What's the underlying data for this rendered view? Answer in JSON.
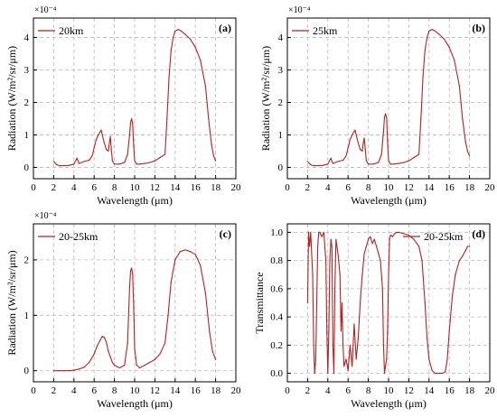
{
  "colors": {
    "series": "#b22222",
    "grid": "#b9b9b9",
    "axis": "#000000"
  },
  "chart_data": [
    {
      "type": "line",
      "panel_label": "(a)",
      "xlabel": "Wavelength (μm)",
      "ylabel": "Radiation (W/m²/sr/μm)",
      "scale_label": "×10⁻⁴",
      "xlim": [
        0,
        20
      ],
      "ylim": [
        -0.35,
        4.6
      ],
      "xticks": [
        0,
        2,
        4,
        6,
        8,
        10,
        12,
        14,
        16,
        18,
        20
      ],
      "yticks": [
        0,
        1,
        2,
        3,
        4
      ],
      "grid": true,
      "legend_position": "top-left",
      "series": [
        {
          "name": "20km",
          "x": [
            2.0,
            2.3,
            2.6,
            3.0,
            3.5,
            4.0,
            4.3,
            4.5,
            5.0,
            5.5,
            5.8,
            6.0,
            6.2,
            6.4,
            6.6,
            6.7,
            6.8,
            7.0,
            7.2,
            7.4,
            7.5,
            7.6,
            7.7,
            7.8,
            8.0,
            8.5,
            9.0,
            9.3,
            9.5,
            9.6,
            9.7,
            9.8,
            9.9,
            10.0,
            10.2,
            10.5,
            11.0,
            11.5,
            12.0,
            12.5,
            13.0,
            13.2,
            13.4,
            13.6,
            13.8,
            14.0,
            14.3,
            14.6,
            15.0,
            15.5,
            16.0,
            16.5,
            17.0,
            17.3,
            17.6,
            17.8,
            18.0
          ],
          "values": [
            0.18,
            0.08,
            0.05,
            0.05,
            0.06,
            0.1,
            0.28,
            0.12,
            0.18,
            0.22,
            0.35,
            0.6,
            0.85,
            1.0,
            1.1,
            1.15,
            1.0,
            0.75,
            0.55,
            0.5,
            0.75,
            0.95,
            0.55,
            0.2,
            0.1,
            0.1,
            0.15,
            0.4,
            1.0,
            1.4,
            1.5,
            1.35,
            0.7,
            0.2,
            0.1,
            0.1,
            0.12,
            0.15,
            0.2,
            0.3,
            0.4,
            1.5,
            2.8,
            3.6,
            4.0,
            4.2,
            4.25,
            4.2,
            4.1,
            3.95,
            3.7,
            3.3,
            2.5,
            1.5,
            0.7,
            0.35,
            0.2
          ]
        }
      ]
    },
    {
      "type": "line",
      "panel_label": "(b)",
      "xlabel": "Wavelength (μm)",
      "ylabel": "Radiation (W/m²/sr/μm)",
      "scale_label": "×10⁻⁴",
      "xlim": [
        0,
        20
      ],
      "ylim": [
        -0.35,
        4.6
      ],
      "xticks": [
        0,
        2,
        4,
        6,
        8,
        10,
        12,
        14,
        16,
        18,
        20
      ],
      "yticks": [
        0,
        1,
        2,
        3,
        4
      ],
      "grid": true,
      "legend_position": "top-left",
      "series": [
        {
          "name": "25km",
          "x": [
            2.0,
            2.3,
            2.6,
            3.0,
            3.5,
            4.0,
            4.3,
            4.5,
            5.0,
            5.5,
            5.8,
            6.0,
            6.2,
            6.4,
            6.6,
            6.7,
            6.8,
            7.0,
            7.2,
            7.4,
            7.5,
            7.6,
            7.7,
            7.8,
            8.0,
            8.5,
            9.0,
            9.3,
            9.5,
            9.6,
            9.7,
            9.8,
            9.9,
            10.0,
            10.2,
            10.5,
            11.0,
            11.5,
            12.0,
            12.5,
            13.0,
            13.2,
            13.4,
            13.6,
            13.8,
            14.0,
            14.3,
            14.6,
            15.0,
            15.5,
            16.0,
            16.5,
            17.0,
            17.3,
            17.6,
            17.8,
            18.0
          ],
          "values": [
            0.18,
            0.08,
            0.05,
            0.05,
            0.06,
            0.1,
            0.28,
            0.12,
            0.18,
            0.22,
            0.35,
            0.6,
            0.85,
            1.0,
            1.1,
            1.15,
            1.0,
            0.75,
            0.55,
            0.5,
            0.75,
            0.9,
            0.55,
            0.2,
            0.1,
            0.1,
            0.15,
            0.4,
            1.1,
            1.55,
            1.65,
            1.55,
            0.8,
            0.2,
            0.1,
            0.1,
            0.12,
            0.15,
            0.2,
            0.3,
            0.4,
            1.5,
            2.8,
            3.6,
            4.0,
            4.2,
            4.25,
            4.2,
            4.1,
            3.95,
            3.7,
            3.3,
            2.5,
            1.5,
            0.8,
            0.5,
            0.35
          ]
        }
      ]
    },
    {
      "type": "line",
      "panel_label": "(c)",
      "xlabel": "Wavelength (μm)",
      "ylabel": "Radiation (W/m²/sr/μm)",
      "scale_label": "×10⁻⁴",
      "xlim": [
        0,
        20
      ],
      "ylim": [
        -0.2,
        2.65
      ],
      "xticks": [
        0,
        2,
        4,
        6,
        8,
        10,
        12,
        14,
        16,
        18,
        20
      ],
      "yticks": [
        0,
        1,
        2
      ],
      "grid": true,
      "legend_position": "top-left",
      "series": [
        {
          "name": "20-25km",
          "x": [
            2.0,
            2.5,
            3.0,
            3.5,
            4.0,
            4.5,
            5.0,
            5.5,
            6.0,
            6.3,
            6.6,
            6.8,
            7.0,
            7.2,
            7.4,
            7.6,
            7.8,
            8.0,
            8.5,
            9.0,
            9.3,
            9.5,
            9.6,
            9.7,
            9.8,
            9.9,
            10.0,
            10.2,
            10.5,
            11.0,
            11.5,
            12.0,
            12.5,
            13.0,
            13.3,
            13.6,
            14.0,
            14.5,
            15.0,
            15.5,
            16.0,
            16.5,
            17.0,
            17.4,
            17.7,
            18.0
          ],
          "values": [
            0.0,
            0.0,
            0.0,
            0.0,
            0.01,
            0.03,
            0.06,
            0.15,
            0.3,
            0.45,
            0.55,
            0.62,
            0.6,
            0.52,
            0.35,
            0.25,
            0.15,
            0.1,
            0.05,
            0.1,
            0.5,
            1.5,
            1.8,
            1.85,
            1.75,
            1.2,
            0.4,
            0.1,
            0.05,
            0.1,
            0.15,
            0.2,
            0.3,
            0.5,
            1.0,
            1.6,
            2.0,
            2.15,
            2.18,
            2.15,
            2.1,
            1.9,
            1.4,
            0.7,
            0.35,
            0.2
          ]
        }
      ]
    },
    {
      "type": "line",
      "panel_label": "(d)",
      "xlabel": "Wavelength (μm)",
      "ylabel": "Transmittance",
      "scale_label": "",
      "xlim": [
        0,
        20
      ],
      "ylim": [
        -0.06,
        1.06
      ],
      "xticks": [
        0,
        2,
        4,
        6,
        8,
        10,
        12,
        14,
        16,
        18,
        20
      ],
      "yticks": [
        0.0,
        0.2,
        0.4,
        0.6,
        0.8,
        1.0
      ],
      "yticklabels": [
        "0.0",
        "0.2",
        "0.4",
        "0.6",
        "0.8",
        "1.0"
      ],
      "grid": true,
      "legend_position": "top-right",
      "series": [
        {
          "name": "20-25km",
          "x": [
            2.0,
            2.1,
            2.2,
            2.3,
            2.5,
            2.6,
            2.7,
            2.8,
            2.9,
            3.0,
            3.1,
            3.2,
            3.4,
            3.6,
            3.8,
            3.9,
            4.0,
            4.1,
            4.2,
            4.3,
            4.4,
            4.5,
            4.6,
            4.7,
            4.8,
            5.0,
            5.2,
            5.3,
            5.4,
            5.5,
            5.6,
            5.8,
            6.0,
            6.2,
            6.4,
            6.6,
            6.8,
            7.0,
            7.2,
            7.4,
            7.6,
            7.8,
            8.0,
            8.2,
            8.4,
            8.6,
            8.8,
            9.0,
            9.2,
            9.4,
            9.5,
            9.6,
            9.7,
            9.8,
            9.9,
            10.0,
            10.1,
            10.2,
            10.4,
            10.6,
            10.8,
            11.0,
            11.5,
            12.0,
            12.5,
            13.0,
            13.3,
            13.6,
            13.8,
            14.0,
            14.3,
            14.6,
            15.0,
            15.3,
            15.6,
            15.8,
            16.0,
            16.3,
            16.6,
            17.0,
            17.3,
            17.6,
            17.8,
            18.0
          ],
          "values": [
            0.5,
            1.0,
            0.9,
            1.0,
            0.7,
            0.2,
            0.0,
            0.1,
            0.5,
            0.9,
            1.0,
            1.0,
            0.97,
            1.0,
            0.8,
            0.3,
            0.0,
            0.3,
            0.8,
            0.95,
            0.9,
            0.2,
            0.0,
            0.6,
            0.95,
            0.85,
            0.7,
            0.3,
            0.5,
            0.2,
            0.05,
            0.1,
            0.02,
            0.2,
            0.05,
            0.35,
            0.1,
            0.25,
            0.5,
            0.7,
            0.85,
            0.9,
            0.95,
            0.97,
            0.92,
            0.95,
            0.9,
            0.85,
            0.8,
            0.6,
            0.2,
            0.0,
            0.05,
            0.1,
            0.3,
            0.7,
            0.95,
            0.98,
            0.97,
            0.99,
            1.0,
            1.0,
            0.99,
            0.98,
            0.95,
            0.9,
            0.8,
            0.5,
            0.25,
            0.1,
            0.02,
            0.0,
            0.0,
            0.0,
            0.01,
            0.1,
            0.3,
            0.55,
            0.7,
            0.8,
            0.83,
            0.87,
            0.9,
            0.9
          ]
        }
      ]
    }
  ]
}
